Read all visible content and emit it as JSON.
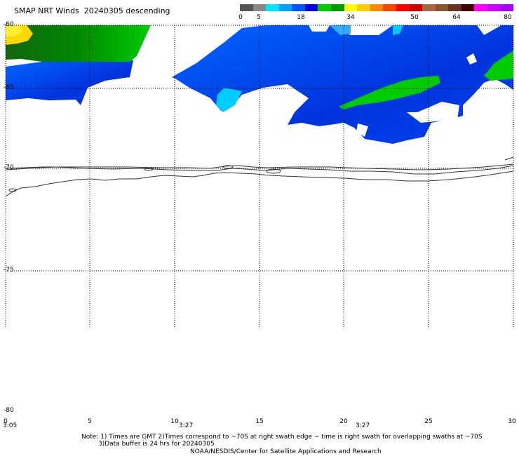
{
  "title": "SMAP NRT Winds  20240305 descending",
  "colorbar": {
    "ticks": [
      "0",
      "5",
      "18",
      "34",
      "50",
      "64",
      "80"
    ],
    "segments": [
      "#555555",
      "#888888",
      "#00e5ff",
      "#00a0ff",
      "#0055ff",
      "#0000e0",
      "#00cc00",
      "#009900",
      "#ffff00",
      "#ffcc00",
      "#ff8800",
      "#ff4400",
      "#ff0000",
      "#cc0000",
      "#aa6644",
      "#885533",
      "#663322",
      "#440000",
      "#ff00ff",
      "#cc00ff",
      "#aa00ff"
    ]
  },
  "axes": {
    "lat_labels": [
      "-60",
      "-65",
      "-70",
      "-75",
      "-80"
    ],
    "lon_labels": [
      "0",
      "5",
      "10",
      "15",
      "20",
      "25",
      "30"
    ],
    "time_labels": [
      "3:05",
      "3:27",
      "3:27"
    ]
  },
  "notes": {
    "line1": "Note: 1) Times are GMT 2)Times correspond to ~70S at right swath edge ~ time is right swath for overlapping swaths at ~70S",
    "line2": "3)Data buffer is 24 hrs for 20240305",
    "line3": "NOAA/NESDIS/Center for Satellite Applications and Research"
  },
  "colors": {
    "wind_green": "#00cc00",
    "wind_blue": "#0055ee",
    "wind_cyan": "#00d8ff",
    "wind_yellow": "#ffdd00"
  }
}
